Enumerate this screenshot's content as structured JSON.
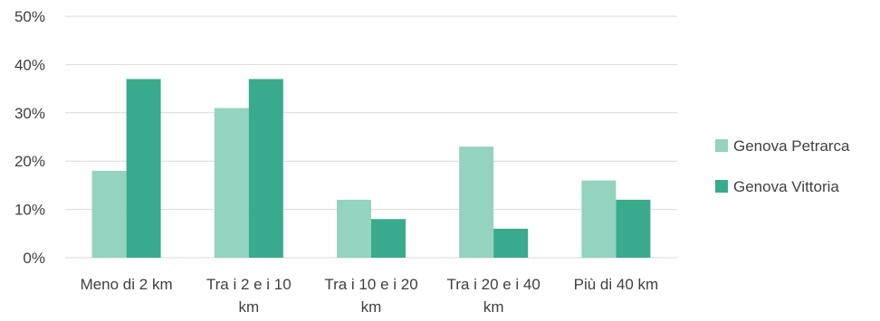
{
  "chart_data": {
    "type": "bar",
    "categories": [
      [
        "Meno di 2 km"
      ],
      [
        "Tra i 2 e i 10",
        "km"
      ],
      [
        "Tra i 10 e i 20",
        "km"
      ],
      [
        "Tra i 20 e i 40",
        "km"
      ],
      [
        "Più di 40 km"
      ]
    ],
    "series": [
      {
        "name": "Genova Petrarca",
        "color": "#93d3c0",
        "values": [
          18,
          31,
          12,
          23,
          16
        ]
      },
      {
        "name": "Genova Vittoria",
        "color": "#3aaa8c",
        "values": [
          37,
          37,
          8,
          6,
          12
        ]
      }
    ],
    "y_ticks": [
      "0%",
      "10%",
      "20%",
      "30%",
      "40%",
      "50%"
    ],
    "ylim": [
      0,
      50
    ],
    "grid": true,
    "legend_position": "right",
    "title": "",
    "xlabel": "",
    "ylabel": ""
  }
}
